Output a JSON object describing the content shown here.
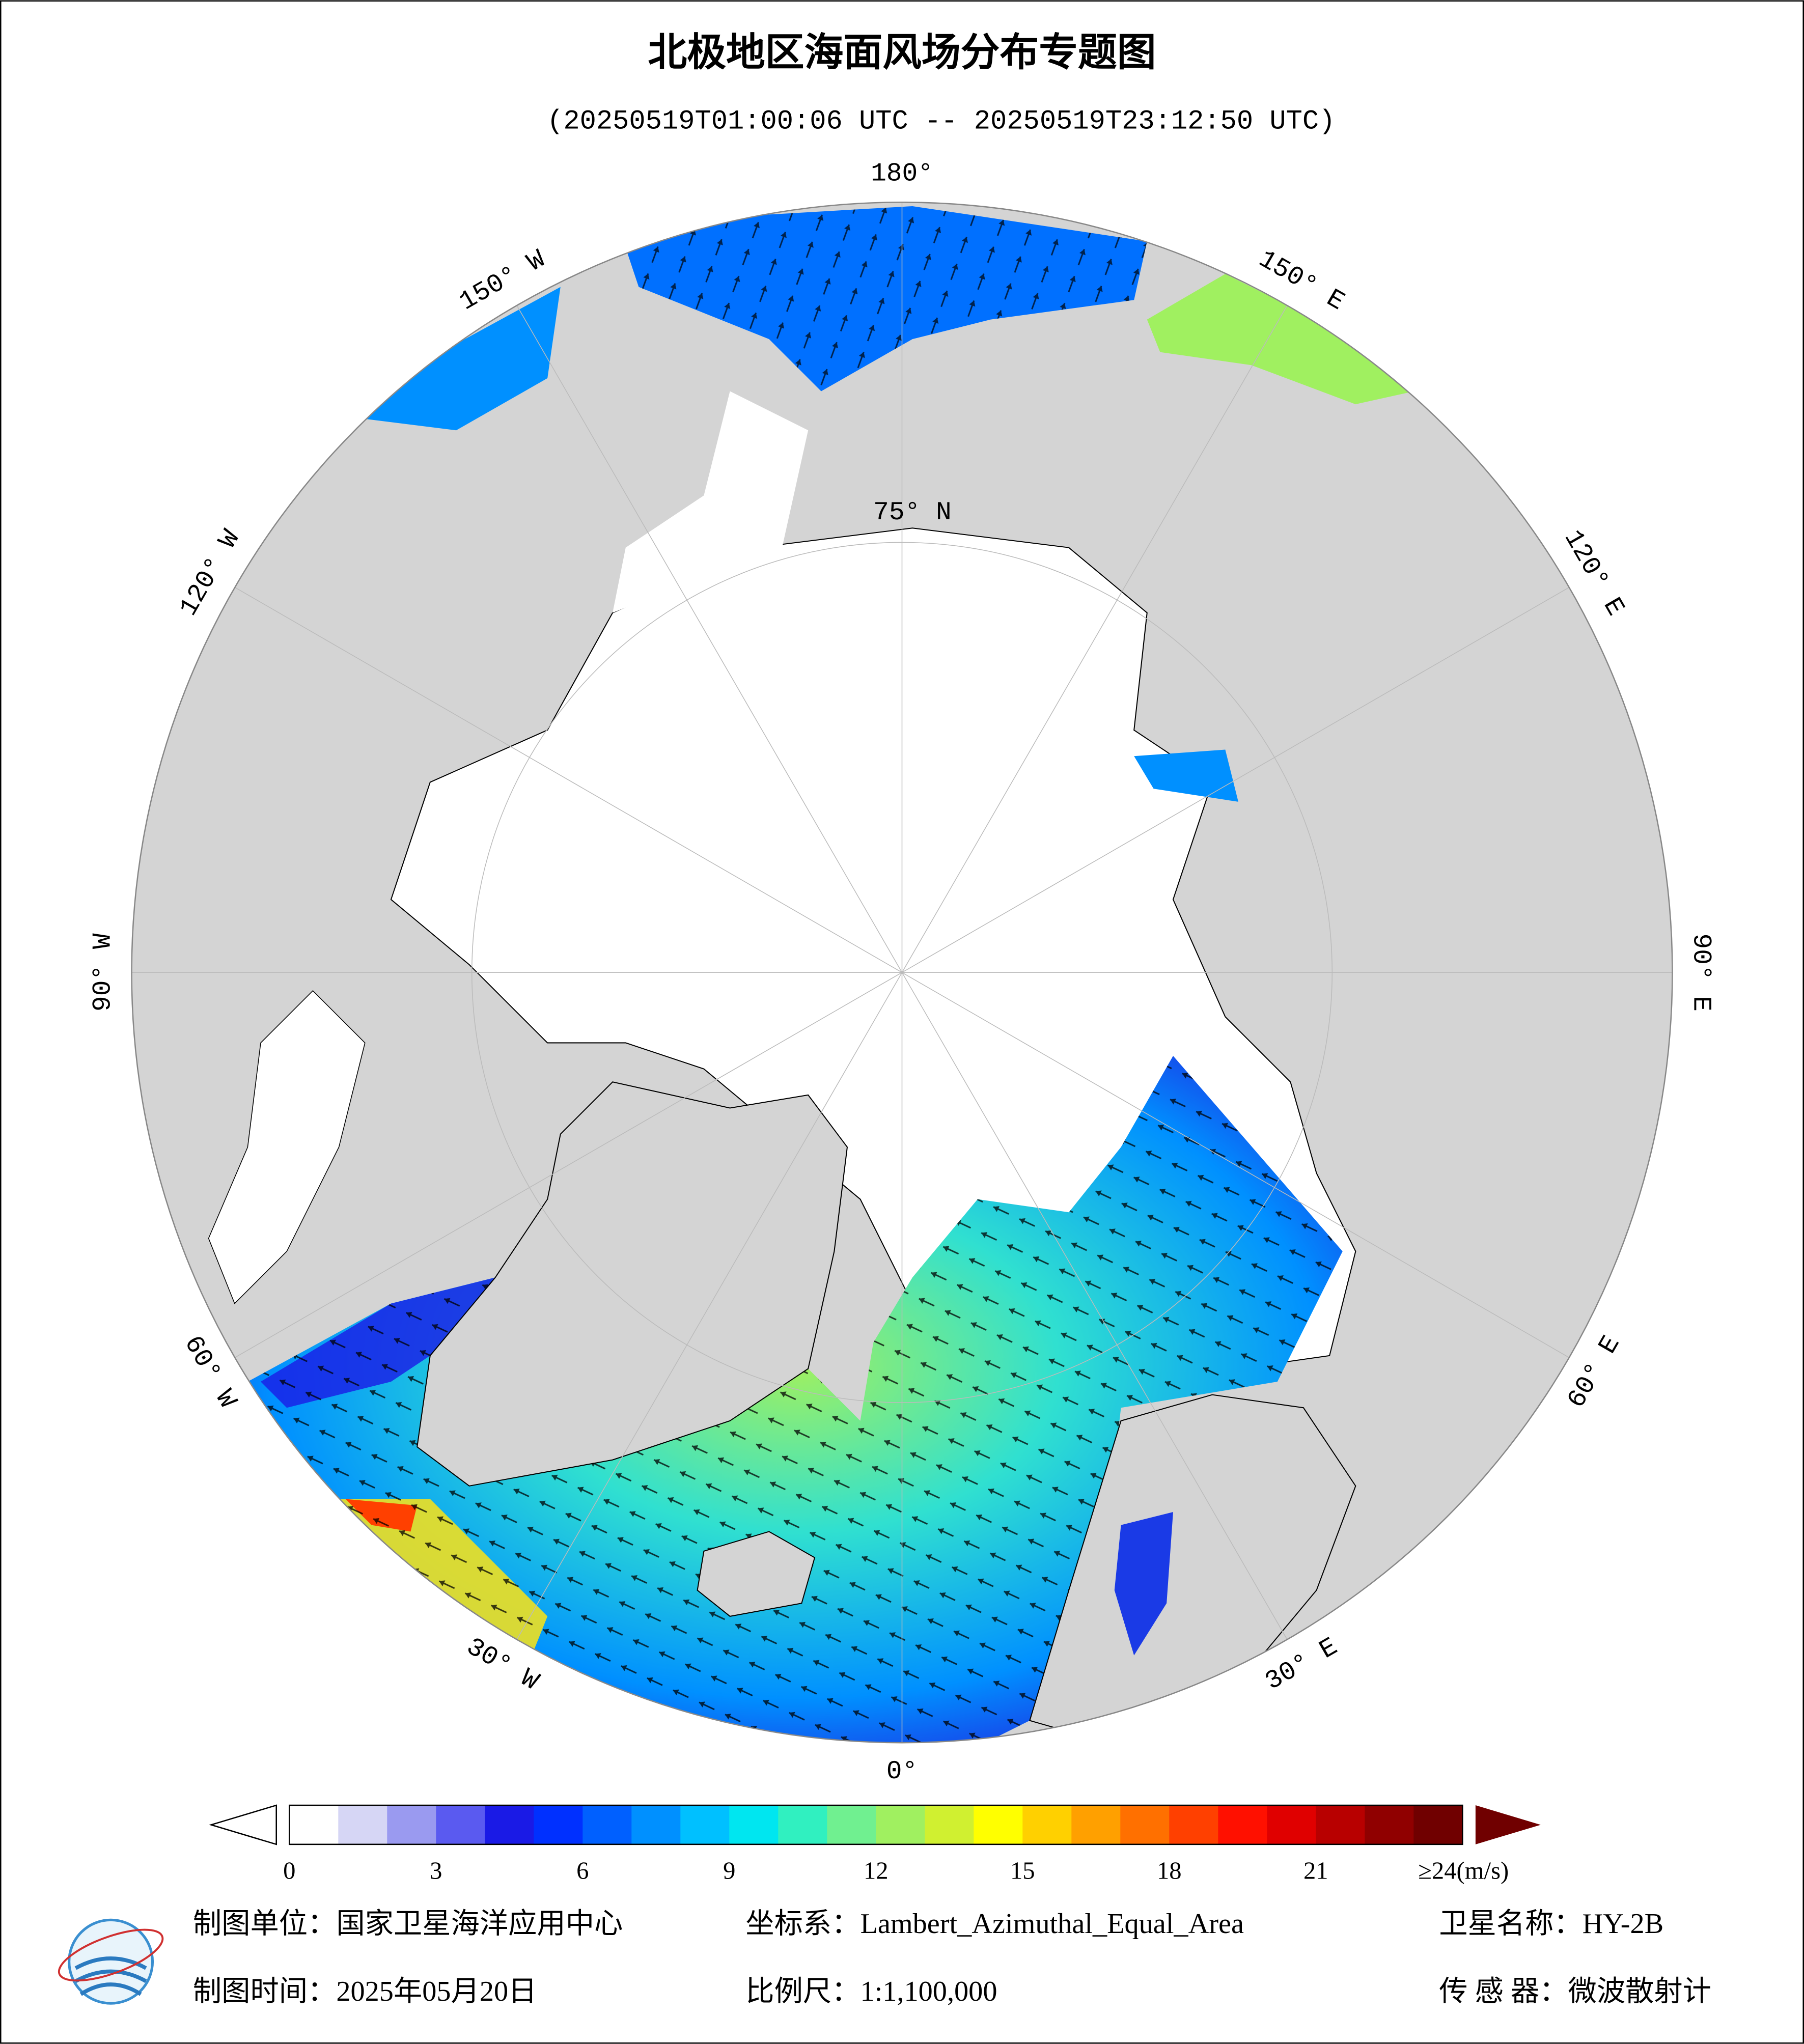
{
  "header": {
    "title": "北极地区海面风场分布专题图",
    "subtitle": "(20250519T01:00:06 UTC -- 20250519T23:12:50 UTC)"
  },
  "map": {
    "meridians": [
      {
        "lon": 180,
        "label": "180°"
      },
      {
        "lon": 150,
        "label": "150° E"
      },
      {
        "lon": 120,
        "label": "120° E"
      },
      {
        "lon": 90,
        "label": "90° E"
      },
      {
        "lon": 60,
        "label": "60° E"
      },
      {
        "lon": 30,
        "label": "30° E"
      },
      {
        "lon": 0,
        "label": "0°"
      },
      {
        "lon": -30,
        "label": "30° W"
      },
      {
        "lon": -60,
        "label": "60° W"
      },
      {
        "lon": -90,
        "label": "90° W"
      },
      {
        "lon": -120,
        "label": "120° W"
      },
      {
        "lon": -150,
        "label": "150° W"
      }
    ],
    "parallel_label": "75° N"
  },
  "colorbar": {
    "range": [
      0,
      24
    ],
    "ticks": [
      0,
      3,
      6,
      9,
      12,
      15,
      18,
      21,
      {
        "value": 24,
        "label": "≥24(m/s)"
      }
    ],
    "colormap": [
      "#ffffff",
      "#d6d6f5",
      "#9a9af0",
      "#5a5af0",
      "#1a1ae6",
      "#0030ff",
      "#0060ff",
      "#0090ff",
      "#00c0ff",
      "#00e6f0",
      "#30f0c0",
      "#70f090",
      "#a0f060",
      "#d0f030",
      "#ffff00",
      "#ffd000",
      "#ffa000",
      "#ff7000",
      "#ff4000",
      "#ff1000",
      "#e00000",
      "#b80000",
      "#900000",
      "#700000"
    ]
  },
  "footer": {
    "producer": "制图单位：国家卫星海洋应用中心",
    "crs": "坐标系：Lambert_Azimuthal_Equal_Area",
    "satellite": "卫星名称：HY-2B",
    "date": "制图时间：2025年05月20日",
    "scale": "比例尺：1:1,100,000",
    "sensor": "传 感 器：微波散射计"
  }
}
